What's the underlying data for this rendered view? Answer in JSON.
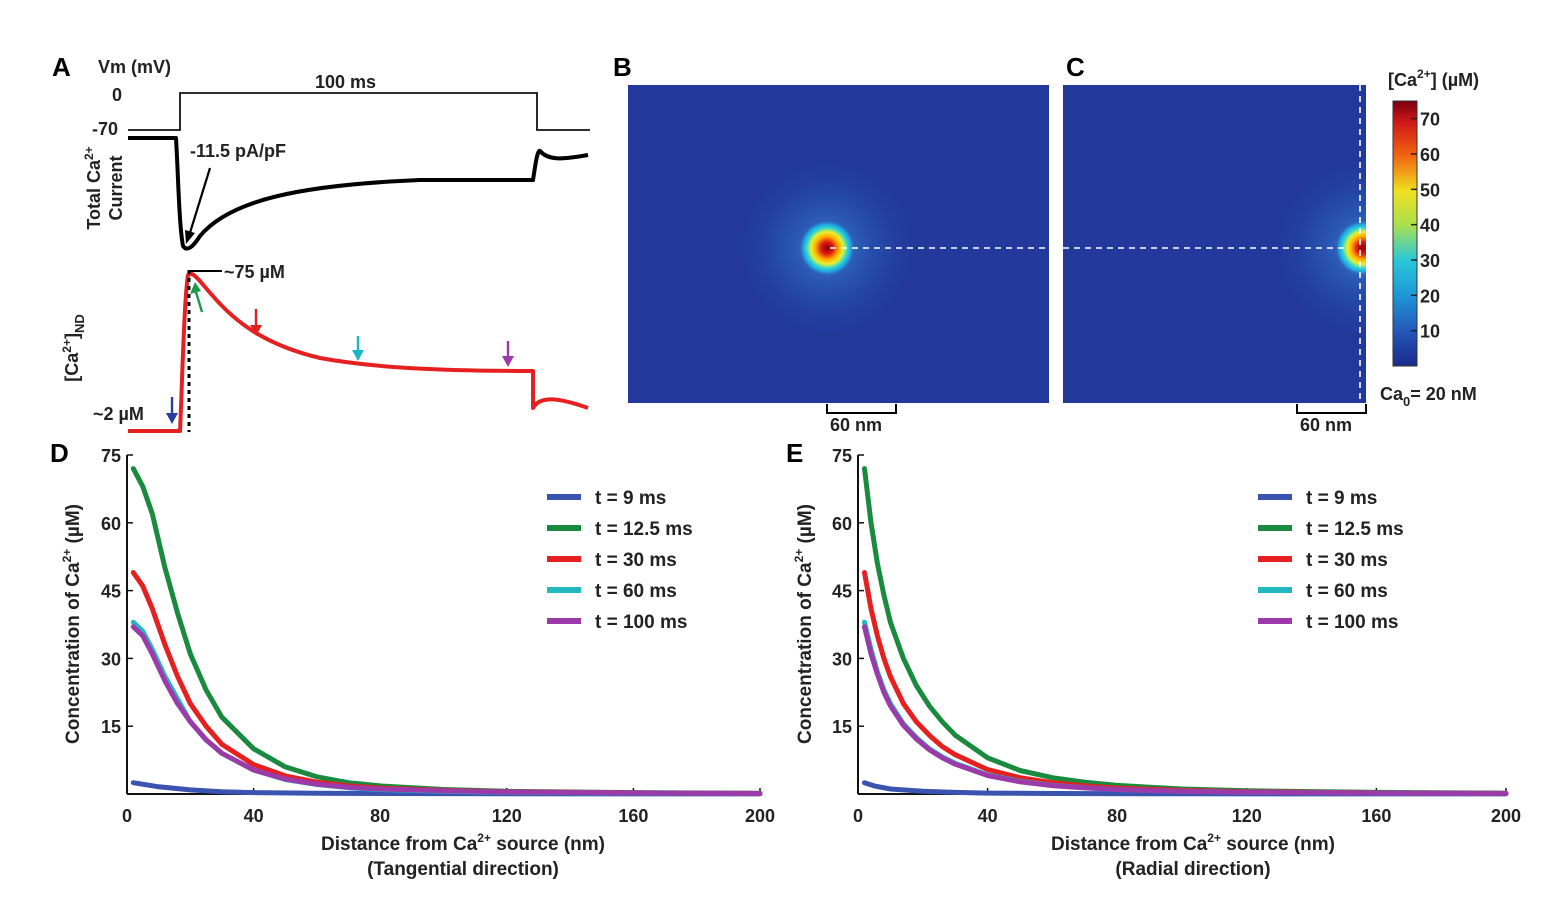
{
  "panels": {
    "A": {
      "letter": "A",
      "vm_label": "Vm (mV)",
      "v_zero": "0",
      "v_rest": "-70",
      "duration": "100 ms",
      "current_label_line1": "Total Ca",
      "current_label_sup": "2+",
      "current_label_line2": "Current",
      "peak_current": "-11.5 pA/pF",
      "peak_conc": "~75 µM",
      "base_conc": "~2 µM",
      "nd_label_main": "[Ca",
      "nd_label_sup": "2+",
      "nd_label_end": "]",
      "nd_label_sub": "ND",
      "arrow_colors": [
        "#2b3fa0",
        "#1a9a4a",
        "#e02020",
        "#19b8c0",
        "#9b3aa8"
      ]
    },
    "B": {
      "letter": "B",
      "scale_label": "60 nm"
    },
    "C": {
      "letter": "C",
      "scale_label": "60 nm"
    },
    "colorbar": {
      "title_main": "[Ca",
      "title_sup": "2+",
      "title_end": "] (µM)",
      "ticks": [
        "70",
        "60",
        "50",
        "40",
        "30",
        "20",
        "10"
      ],
      "tick_values": [
        70,
        60,
        50,
        40,
        30,
        20,
        10
      ],
      "min": 0,
      "max": 75,
      "baseline_main": "Ca",
      "baseline_sub": "0",
      "baseline_end": "= 20 nM"
    },
    "D": {
      "letter": "D",
      "xlabel_main": "Distance from Ca",
      "xlabel_sup": "2+",
      "xlabel_end": " source (nm)",
      "xlabel_line2": "(Tangential direction)"
    },
    "E": {
      "letter": "E",
      "xlabel_main": "Distance from Ca",
      "xlabel_sup": "2+",
      "xlabel_end": " source (nm)",
      "xlabel_line2": "(Radial direction)"
    },
    "ylabel_main": "Concentration of Ca",
    "ylabel_sup": "2+",
    "ylabel_end": " (µM)"
  },
  "chart_data": [
    {
      "type": "line",
      "panel": "D",
      "xlim": [
        0,
        200
      ],
      "ylim": [
        0,
        75
      ],
      "xticks": [
        0,
        40,
        80,
        120,
        160,
        200
      ],
      "yticks": [
        15,
        30,
        45,
        60,
        75
      ],
      "legend_position": "top-right",
      "series": [
        {
          "name": "t = 9 ms",
          "color": "#3a53b0",
          "x": [
            2,
            10,
            20,
            30,
            40,
            60,
            80,
            120,
            200
          ],
          "y": [
            2.5,
            1.6,
            0.9,
            0.5,
            0.3,
            0.15,
            0.1,
            0.05,
            0.02
          ]
        },
        {
          "name": "t = 12.5 ms",
          "color": "#1a8a3e",
          "x": [
            2,
            5,
            8,
            12,
            16,
            20,
            25,
            30,
            40,
            50,
            60,
            70,
            80,
            100,
            120,
            160,
            200
          ],
          "y": [
            72,
            68,
            62,
            50,
            40,
            31,
            23,
            17,
            10,
            6,
            3.8,
            2.5,
            1.8,
            1.0,
            0.6,
            0.3,
            0.15
          ]
        },
        {
          "name": "t = 30 ms",
          "color": "#e62020",
          "x": [
            2,
            5,
            8,
            12,
            16,
            20,
            25,
            30,
            40,
            50,
            60,
            70,
            80,
            100,
            120,
            160,
            200
          ],
          "y": [
            49,
            46,
            41,
            33,
            26,
            20,
            15,
            11,
            6.5,
            4,
            2.6,
            1.8,
            1.3,
            0.8,
            0.5,
            0.25,
            0.12
          ]
        },
        {
          "name": "t = 60 ms",
          "color": "#21b8c0",
          "x": [
            2,
            5,
            8,
            12,
            16,
            20,
            25,
            30,
            40,
            50,
            60,
            70,
            80,
            100,
            120,
            160,
            200
          ],
          "y": [
            38,
            36,
            32,
            26,
            21,
            16,
            12,
            9,
            5.3,
            3.2,
            2.1,
            1.4,
            1.0,
            0.6,
            0.4,
            0.2,
            0.1
          ]
        },
        {
          "name": "t = 100 ms",
          "color": "#9b3aa8",
          "x": [
            2,
            5,
            8,
            12,
            16,
            20,
            25,
            30,
            40,
            50,
            60,
            70,
            80,
            100,
            120,
            160,
            200
          ],
          "y": [
            37,
            35,
            31,
            25,
            20,
            16,
            12,
            9,
            5.3,
            3.3,
            2.2,
            1.5,
            1.1,
            0.7,
            0.45,
            0.22,
            0.1
          ]
        }
      ]
    },
    {
      "type": "line",
      "panel": "E",
      "xlim": [
        0,
        200
      ],
      "ylim": [
        0,
        75
      ],
      "xticks": [
        0,
        40,
        80,
        120,
        160,
        200
      ],
      "yticks": [
        15,
        30,
        45,
        60,
        75
      ],
      "legend_position": "top-right",
      "series": [
        {
          "name": "t = 9 ms",
          "color": "#3a53b0",
          "x": [
            2,
            5,
            10,
            20,
            30,
            40,
            60,
            100,
            200
          ],
          "y": [
            2.5,
            1.8,
            1.1,
            0.6,
            0.35,
            0.2,
            0.1,
            0.05,
            0.02
          ]
        },
        {
          "name": "t = 12.5 ms",
          "color": "#1a8a3e",
          "x": [
            2,
            4,
            6,
            8,
            10,
            14,
            18,
            22,
            26,
            30,
            40,
            50,
            60,
            70,
            80,
            100,
            120,
            160,
            200
          ],
          "y": [
            72,
            60,
            51,
            44,
            38,
            30,
            24,
            19.5,
            16,
            13,
            8,
            5.2,
            3.6,
            2.6,
            1.9,
            1.1,
            0.7,
            0.35,
            0.2
          ]
        },
        {
          "name": "t = 30 ms",
          "color": "#e62020",
          "x": [
            2,
            4,
            6,
            8,
            10,
            14,
            18,
            22,
            26,
            30,
            40,
            50,
            60,
            70,
            80,
            100,
            120,
            160,
            200
          ],
          "y": [
            49,
            41,
            35,
            30,
            26,
            20,
            16,
            13,
            10.5,
            8.7,
            5.4,
            3.6,
            2.5,
            1.8,
            1.3,
            0.8,
            0.5,
            0.25,
            0.12
          ]
        },
        {
          "name": "t = 60 ms",
          "color": "#21b8c0",
          "x": [
            2,
            4,
            6,
            8,
            10,
            14,
            18,
            22,
            26,
            30,
            40,
            50,
            60,
            70,
            80,
            100,
            120,
            160,
            200
          ],
          "y": [
            38,
            32,
            27,
            23,
            20,
            15.5,
            12.5,
            10,
            8.2,
            6.8,
            4.2,
            2.8,
            1.9,
            1.4,
            1.0,
            0.6,
            0.4,
            0.2,
            0.1
          ]
        },
        {
          "name": "t = 100 ms",
          "color": "#9b3aa8",
          "x": [
            2,
            4,
            6,
            8,
            10,
            14,
            18,
            22,
            26,
            30,
            40,
            50,
            60,
            70,
            80,
            100,
            120,
            160,
            200
          ],
          "y": [
            37,
            31,
            26.5,
            22.5,
            19.5,
            15.2,
            12.2,
            9.8,
            8,
            6.6,
            4.1,
            2.7,
            1.85,
            1.35,
            1.0,
            0.6,
            0.4,
            0.2,
            0.1
          ]
        }
      ]
    }
  ]
}
